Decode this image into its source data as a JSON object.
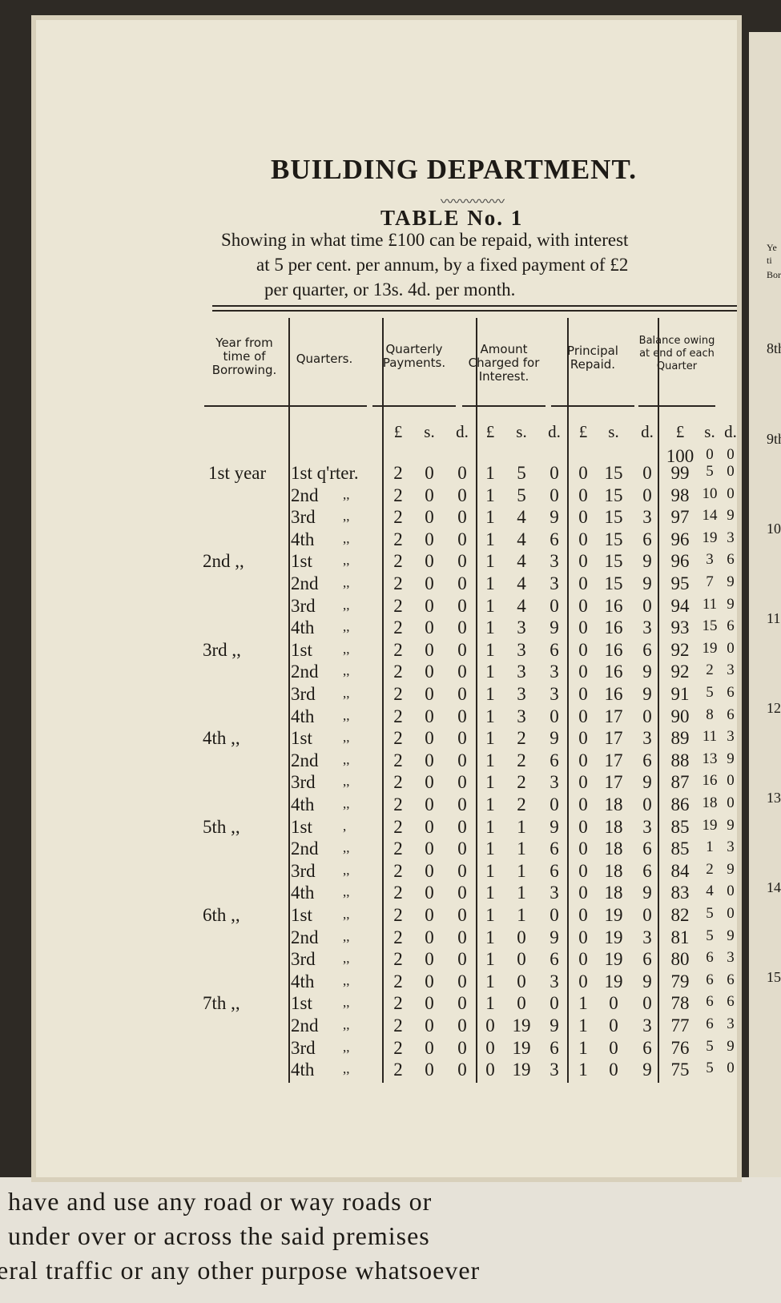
{
  "title": "BUILDING DEPARTMENT.",
  "subtitle": "TABLE No. 1",
  "description": [
    "Showing in what time £100 can be repaid, with interest",
    "at 5 per cent. per annum, by a fixed payment of £2",
    "per quarter, or 13s. 4d. per month."
  ],
  "table": {
    "columns": [
      "Year from time of Borrowing.",
      "Quarters.",
      "Quarterly Payments.",
      "Amount Charged for Interest.",
      "Principal Repaid.",
      "Balance owing at end of each Quarter"
    ],
    "units": [
      "£",
      "s.",
      "d."
    ],
    "opening_balance": [
      100,
      0,
      0
    ],
    "rows": [
      {
        "year": "1st year",
        "quarter": "1st q'rter.",
        "ditto": null,
        "values": [
          2,
          0,
          0,
          1,
          5,
          0,
          0,
          15,
          0,
          99,
          5,
          0
        ]
      },
      {
        "year": null,
        "quarter": "2nd",
        "ditto": ",,",
        "values": [
          2,
          0,
          0,
          1,
          5,
          0,
          0,
          15,
          0,
          98,
          10,
          0
        ]
      },
      {
        "year": null,
        "quarter": "3rd",
        "ditto": ",,",
        "values": [
          2,
          0,
          0,
          1,
          4,
          9,
          0,
          15,
          3,
          97,
          14,
          9
        ]
      },
      {
        "year": null,
        "quarter": "4th",
        "ditto": ",,",
        "values": [
          2,
          0,
          0,
          1,
          4,
          6,
          0,
          15,
          6,
          96,
          19,
          3
        ]
      },
      {
        "year": "2nd ,,",
        "quarter": "1st",
        "ditto": ",,",
        "values": [
          2,
          0,
          0,
          1,
          4,
          3,
          0,
          15,
          9,
          96,
          3,
          6
        ]
      },
      {
        "year": null,
        "quarter": "2nd",
        "ditto": ",,",
        "values": [
          2,
          0,
          0,
          1,
          4,
          3,
          0,
          15,
          9,
          95,
          7,
          9
        ]
      },
      {
        "year": null,
        "quarter": "3rd",
        "ditto": ",,",
        "values": [
          2,
          0,
          0,
          1,
          4,
          0,
          0,
          16,
          0,
          94,
          11,
          9
        ]
      },
      {
        "year": null,
        "quarter": "4th",
        "ditto": ",,",
        "values": [
          2,
          0,
          0,
          1,
          3,
          9,
          0,
          16,
          3,
          93,
          15,
          6
        ]
      },
      {
        "year": "3rd ,,",
        "quarter": "1st",
        "ditto": ",,",
        "values": [
          2,
          0,
          0,
          1,
          3,
          6,
          0,
          16,
          6,
          92,
          19,
          0
        ]
      },
      {
        "year": null,
        "quarter": "2nd",
        "ditto": ",,",
        "values": [
          2,
          0,
          0,
          1,
          3,
          3,
          0,
          16,
          9,
          92,
          2,
          3
        ]
      },
      {
        "year": null,
        "quarter": "3rd",
        "ditto": ",,",
        "values": [
          2,
          0,
          0,
          1,
          3,
          3,
          0,
          16,
          9,
          91,
          5,
          6
        ]
      },
      {
        "year": null,
        "quarter": "4th",
        "ditto": ",,",
        "values": [
          2,
          0,
          0,
          1,
          3,
          0,
          0,
          17,
          0,
          90,
          8,
          6
        ]
      },
      {
        "year": "4th ,,",
        "quarter": "1st",
        "ditto": ",,",
        "values": [
          2,
          0,
          0,
          1,
          2,
          9,
          0,
          17,
          3,
          89,
          11,
          3
        ]
      },
      {
        "year": null,
        "quarter": "2nd",
        "ditto": ",,",
        "values": [
          2,
          0,
          0,
          1,
          2,
          6,
          0,
          17,
          6,
          88,
          13,
          9
        ]
      },
      {
        "year": null,
        "quarter": "3rd",
        "ditto": ",,",
        "values": [
          2,
          0,
          0,
          1,
          2,
          3,
          0,
          17,
          9,
          87,
          16,
          0
        ]
      },
      {
        "year": null,
        "quarter": "4th",
        "ditto": ",,",
        "values": [
          2,
          0,
          0,
          1,
          2,
          0,
          0,
          18,
          0,
          86,
          18,
          0
        ]
      },
      {
        "year": "5th ,,",
        "quarter": "1st",
        "ditto": ",",
        "values": [
          2,
          0,
          0,
          1,
          1,
          9,
          0,
          18,
          3,
          85,
          19,
          9
        ]
      },
      {
        "year": null,
        "quarter": "2nd",
        "ditto": ",,",
        "values": [
          2,
          0,
          0,
          1,
          1,
          6,
          0,
          18,
          6,
          85,
          1,
          3
        ]
      },
      {
        "year": null,
        "quarter": "3rd",
        "ditto": ",,",
        "values": [
          2,
          0,
          0,
          1,
          1,
          6,
          0,
          18,
          6,
          84,
          2,
          9
        ]
      },
      {
        "year": null,
        "quarter": "4th",
        "ditto": ",,",
        "values": [
          2,
          0,
          0,
          1,
          1,
          3,
          0,
          18,
          9,
          83,
          4,
          0
        ]
      },
      {
        "year": "6th ,,",
        "quarter": "1st",
        "ditto": ",,",
        "values": [
          2,
          0,
          0,
          1,
          1,
          0,
          0,
          19,
          0,
          82,
          5,
          0
        ]
      },
      {
        "year": null,
        "quarter": "2nd",
        "ditto": ",,",
        "values": [
          2,
          0,
          0,
          1,
          0,
          9,
          0,
          19,
          3,
          81,
          5,
          9
        ]
      },
      {
        "year": null,
        "quarter": "3rd",
        "ditto": ",,",
        "values": [
          2,
          0,
          0,
          1,
          0,
          6,
          0,
          19,
          6,
          80,
          6,
          3
        ]
      },
      {
        "year": null,
        "quarter": "4th",
        "ditto": ",,",
        "values": [
          2,
          0,
          0,
          1,
          0,
          3,
          0,
          19,
          9,
          79,
          6,
          6
        ]
      },
      {
        "year": "7th ,,",
        "quarter": "1st",
        "ditto": ",,",
        "values": [
          2,
          0,
          0,
          1,
          0,
          0,
          1,
          0,
          0,
          78,
          6,
          6
        ]
      },
      {
        "year": null,
        "quarter": "2nd",
        "ditto": ",,",
        "values": [
          2,
          0,
          0,
          0,
          19,
          9,
          1,
          0,
          3,
          77,
          6,
          3
        ]
      },
      {
        "year": null,
        "quarter": "3rd",
        "ditto": ",,",
        "values": [
          2,
          0,
          0,
          0,
          19,
          6,
          1,
          0,
          6,
          76,
          5,
          9
        ]
      },
      {
        "year": null,
        "quarter": "4th",
        "ditto": ",,",
        "values": [
          2,
          0,
          0,
          0,
          19,
          3,
          1,
          0,
          9,
          75,
          5,
          0
        ]
      }
    ]
  },
  "next_page_fragments": [
    "Ye",
    "ti",
    "Bor",
    "8th",
    "9th",
    "10",
    "11",
    "12",
    "13",
    "14",
    "15"
  ],
  "underlying_page_lines": [
    "have and use any road or way roads or",
    "under over or across the said premises",
    "eral traffic or any other purpose whatsoever"
  ]
}
